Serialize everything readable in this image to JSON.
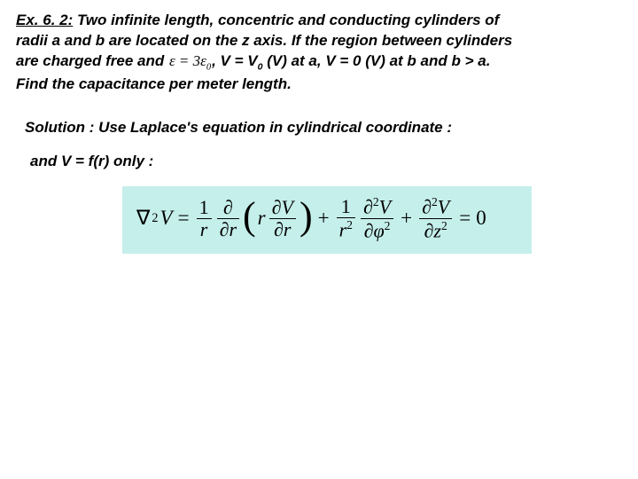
{
  "problem": {
    "ex_label": "Ex. 6. 2:",
    "line1_rest": " Two infinite length, concentric and conducting cylinders of",
    "line2": "radii a and b are located on the z axis. If the region between cylinders",
    "line3_a": "are charged free and ",
    "epsilon": "ε = 3ε",
    "epsilon_sub": "0",
    "line3_b": ", V = V",
    "v0_sub": "0",
    "line3_c": " (V) at a, V = 0 (V) at b and b > a.",
    "line4": "Find the capacitance per meter length."
  },
  "solution": {
    "text": "Solution : Use Laplace's equation in cylindrical coordinate :"
  },
  "condition": {
    "text": "and V = f(r) only :"
  },
  "equation": {
    "background_color": "#c5efeb",
    "nabla": "∇",
    "sup2": "2",
    "V": "V",
    "eq": "=",
    "one": "1",
    "r": "r",
    "partial": "∂",
    "r2": "r",
    "phi": "φ",
    "z": "z",
    "plus": "+",
    "zero": "0"
  }
}
